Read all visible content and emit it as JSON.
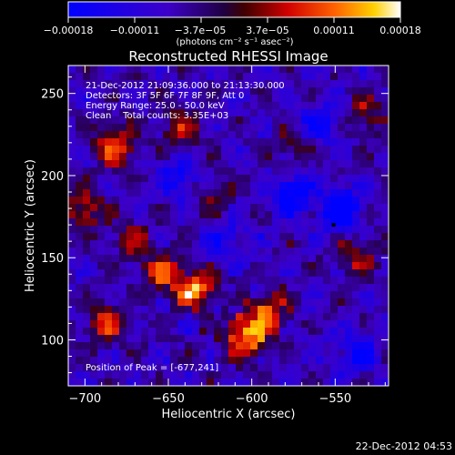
{
  "colorbar": {
    "ticks": [
      "−0.00018",
      "−0.00011",
      "−3.7e−05",
      "3.7e−05",
      "0.00011",
      "0.00018"
    ],
    "unit_label": "(photons cm⁻² s⁻¹ asec⁻²)",
    "range": [
      -0.00018,
      0.00018
    ]
  },
  "chart_data": {
    "type": "heatmap",
    "title": "Reconstructed RHESSI Image",
    "xlabel": "Heliocentric X (arcsec)",
    "ylabel": "Heliocentric Y (arcsec)",
    "xlim": [
      -710,
      -518
    ],
    "ylim": [
      72,
      267
    ],
    "xticks": [
      -700,
      -650,
      -600,
      -550
    ],
    "xtick_labels": [
      "−700",
      "−650",
      "−600",
      "−550"
    ],
    "yticks": [
      100,
      150,
      200,
      250
    ],
    "ytick_labels": [
      "100",
      "150",
      "200",
      "250"
    ],
    "grid": false,
    "peak": {
      "x": -677,
      "y": 241
    },
    "annotations": [
      "21-Dec-2012 21:09:36.000 to 21:13:30.000",
      "Detectors: 3F 5F 6F 7F 8F 9F, Att 0",
      "Energy Range: 25.0 - 50.0 keV",
      "Clean    Total counts: 3.35E+03"
    ],
    "peak_label": "Position of Peak = [-677,241]"
  },
  "footer": {
    "timestamp": "22-Dec-2012 04:53"
  }
}
